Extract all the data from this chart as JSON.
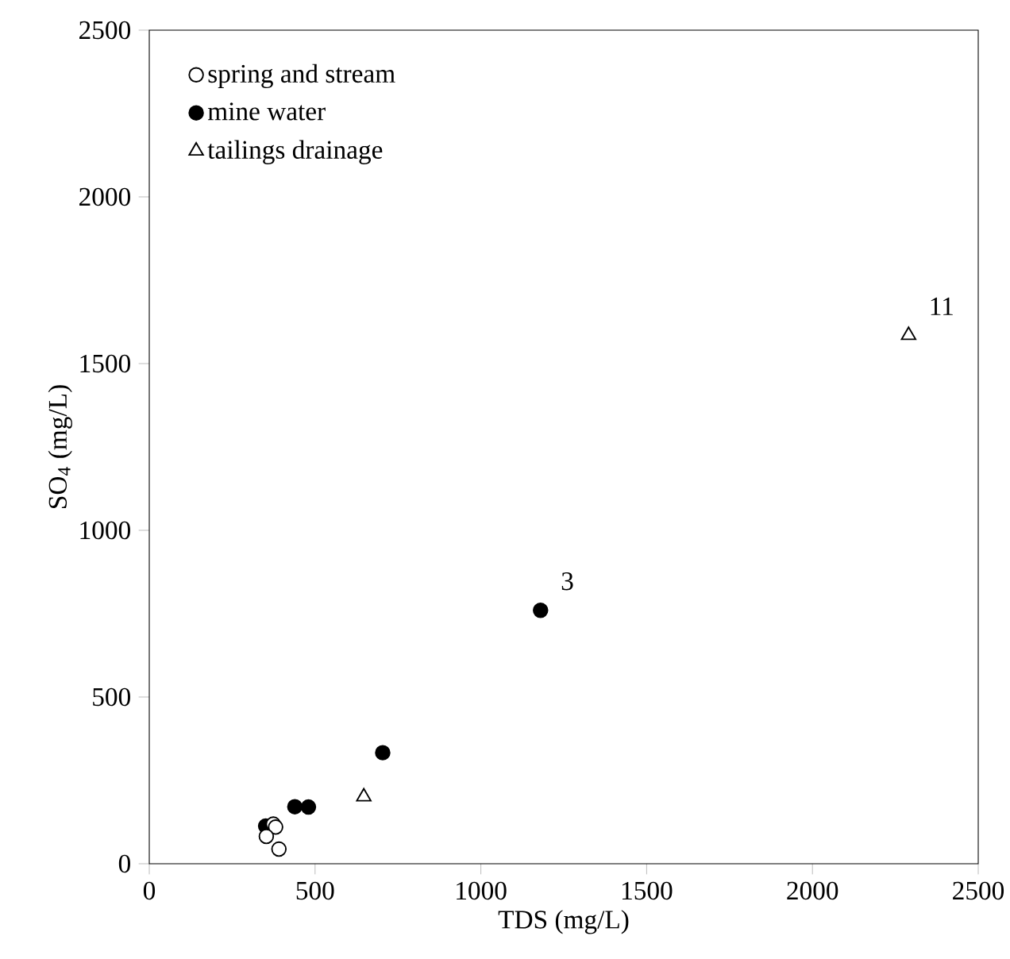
{
  "chart_data": {
    "type": "scatter",
    "xlabel": "TDS (mg/L)",
    "ylabel": "SO$_{4}$ (mg/L)",
    "xlim": [
      0,
      2500
    ],
    "ylim": [
      0,
      2500
    ],
    "xticks": [
      0,
      500,
      1000,
      1500,
      2000,
      2500
    ],
    "yticks": [
      0,
      500,
      1000,
      1500,
      2000,
      2500
    ],
    "legend": "top left",
    "grid": false,
    "series": [
      {
        "name": "spring and stream",
        "color": "#ffffff",
        "marker": "circle",
        "x": [
          374,
          381,
          353,
          391
        ],
        "values": [
          119,
          110,
          82,
          44
        ]
      },
      {
        "name": "mine water",
        "color": "#000000",
        "marker": "circle",
        "x": [
          351,
          439,
          480,
          704,
          1180
        ],
        "values": [
          113,
          171,
          170,
          333,
          760
        ]
      },
      {
        "name": "tailings drainage",
        "color": "#ffffff",
        "marker": "triangle",
        "x": [
          647,
          2290
        ],
        "values": [
          201,
          1585
        ]
      }
    ],
    "annotations": [
      {
        "text": "3",
        "x": 1180,
        "y": 760
      },
      {
        "text": "11",
        "x": 2290,
        "y": 1585
      }
    ]
  }
}
